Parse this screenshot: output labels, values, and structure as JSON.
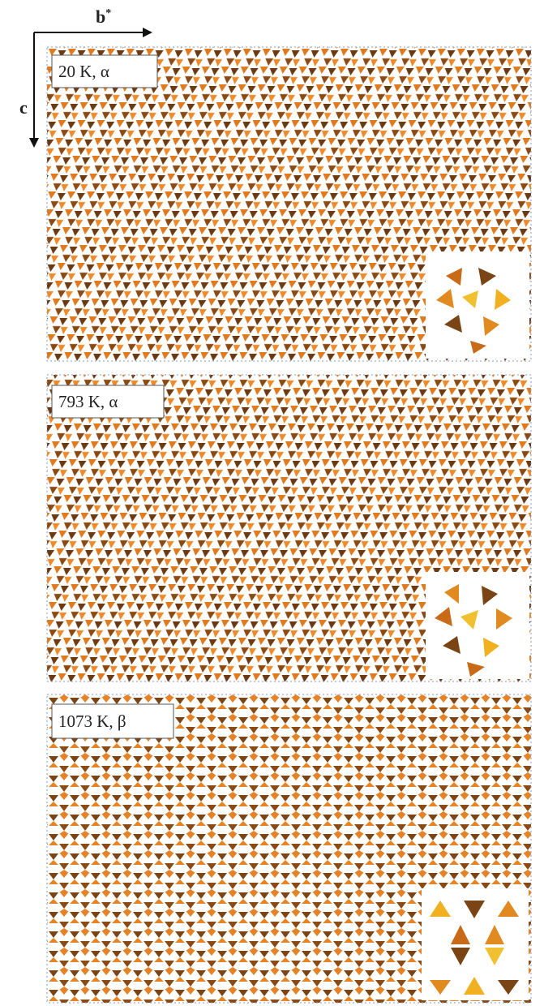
{
  "axes": {
    "horizontal": {
      "label": "b",
      "superscript": "*"
    },
    "vertical": {
      "label": "c"
    }
  },
  "panels": [
    {
      "label": "20 K, α"
    },
    {
      "label": "793 K, α"
    },
    {
      "label": "1073 K, β"
    }
  ]
}
